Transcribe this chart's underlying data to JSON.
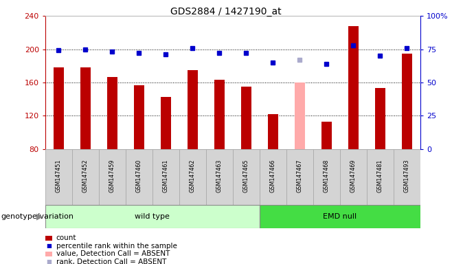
{
  "title": "GDS2884 / 1427190_at",
  "samples": [
    "GSM147451",
    "GSM147452",
    "GSM147459",
    "GSM147460",
    "GSM147461",
    "GSM147462",
    "GSM147463",
    "GSM147465",
    "GSM147466",
    "GSM147467",
    "GSM147468",
    "GSM147469",
    "GSM147481",
    "GSM147493"
  ],
  "count_values": [
    178,
    178,
    167,
    157,
    143,
    175,
    163,
    155,
    122,
    160,
    113,
    228,
    153,
    195
  ],
  "percentile_values": [
    74,
    75,
    73,
    72,
    71,
    76,
    72,
    72,
    65,
    67,
    64,
    78,
    70,
    76
  ],
  "absent_mask": [
    false,
    false,
    false,
    false,
    false,
    false,
    false,
    false,
    false,
    true,
    false,
    false,
    false,
    false
  ],
  "wild_type_count": 8,
  "emd_null_count": 6,
  "ylim_left": [
    80,
    240
  ],
  "ylim_right": [
    0,
    100
  ],
  "yticks_left": [
    80,
    120,
    160,
    200,
    240
  ],
  "yticks_right": [
    0,
    25,
    50,
    75,
    100
  ],
  "bar_color_normal": "#bb0000",
  "bar_color_absent": "#ffaaaa",
  "dot_color_normal": "#0000cc",
  "dot_color_absent": "#aaaacc",
  "bg_plot": "#ffffff",
  "bg_wildtype": "#ccffcc",
  "bg_emdnull": "#44dd44",
  "grid_color": "#000000",
  "left_axis_color": "#bb0000",
  "right_axis_color": "#0000cc",
  "bar_width": 0.4,
  "legend_items": [
    {
      "label": "count",
      "color": "#bb0000",
      "type": "bar"
    },
    {
      "label": "percentile rank within the sample",
      "color": "#0000cc",
      "type": "dot"
    },
    {
      "label": "value, Detection Call = ABSENT",
      "color": "#ffaaaa",
      "type": "bar"
    },
    {
      "label": "rank, Detection Call = ABSENT",
      "color": "#aaaacc",
      "type": "dot"
    }
  ],
  "genotype_label": "genotype/variation",
  "wildtype_label": "wild type",
  "emdnull_label": "EMD null"
}
